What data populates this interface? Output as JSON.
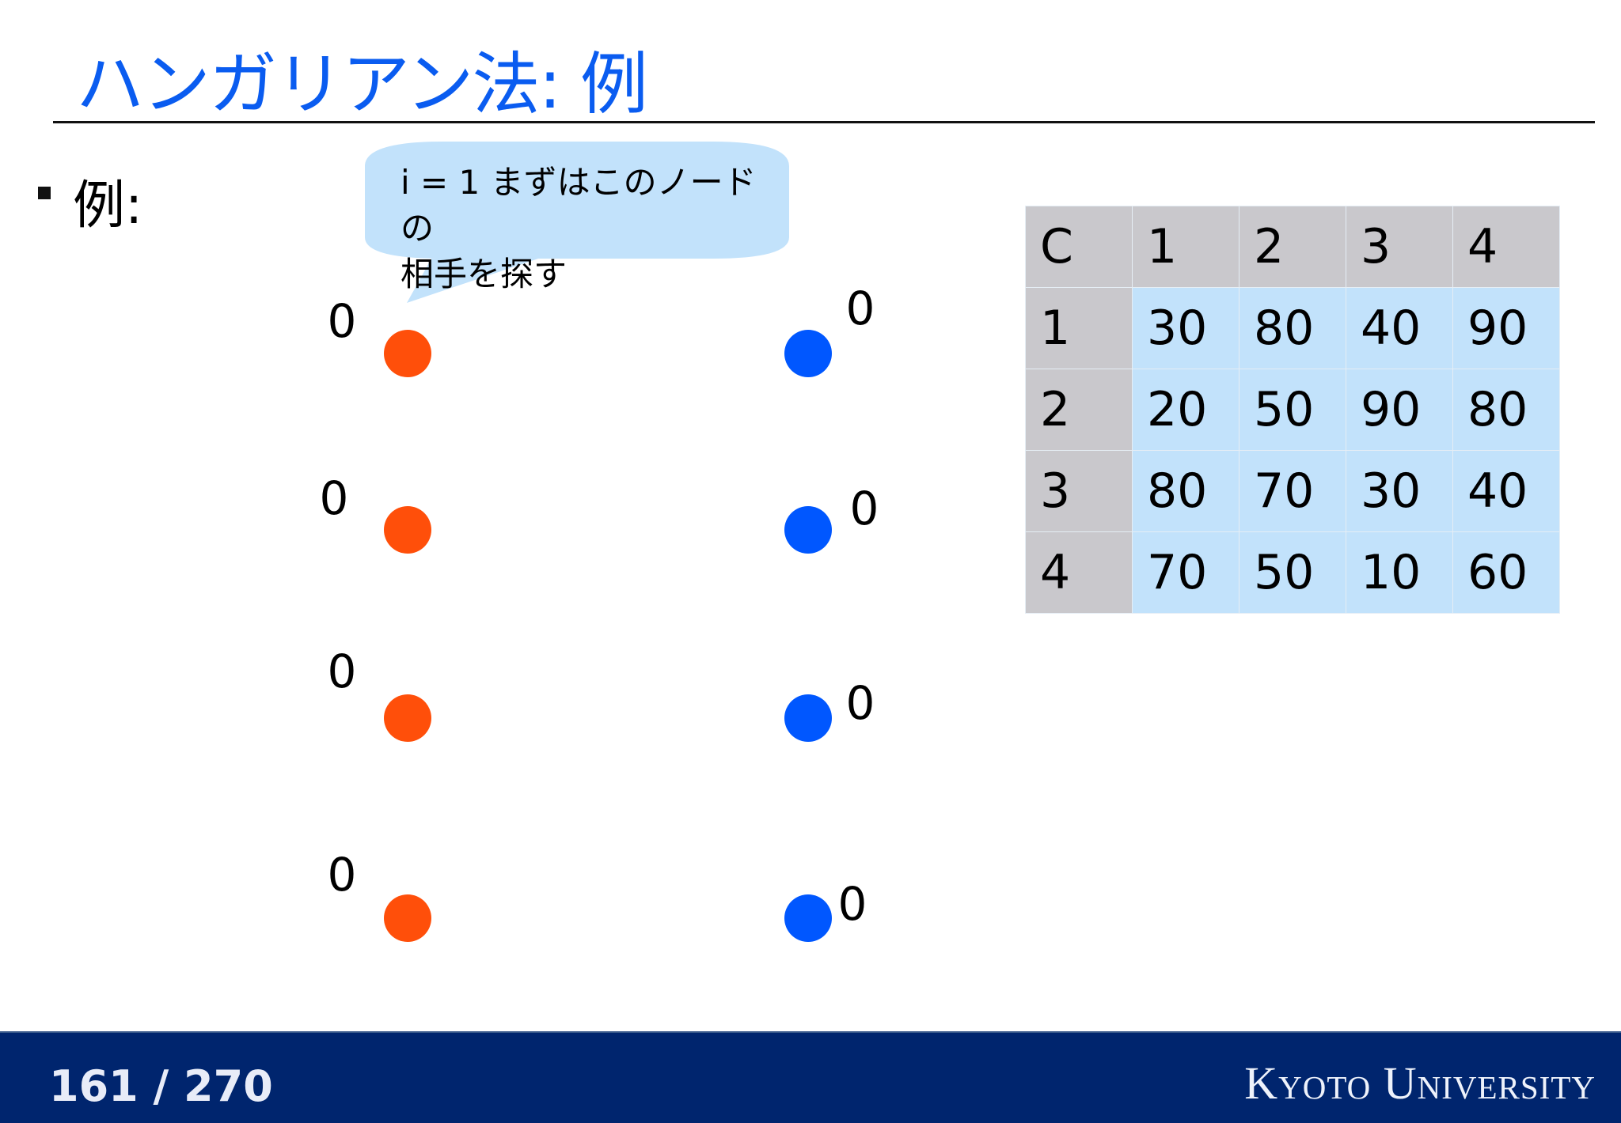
{
  "title": "ハンガリアン法: 例",
  "bullet": "例:",
  "callout": {
    "line1": "i = 1 まずはこのノードの",
    "line2": "相手を探す"
  },
  "table": {
    "corner": "C",
    "col_headers": [
      "1",
      "2",
      "3",
      "4"
    ],
    "rows": [
      {
        "label": "1",
        "values": [
          "30",
          "80",
          "40",
          "90"
        ]
      },
      {
        "label": "2",
        "values": [
          "20",
          "50",
          "90",
          "80"
        ]
      },
      {
        "label": "3",
        "values": [
          "80",
          "70",
          "30",
          "40"
        ]
      },
      {
        "label": "4",
        "values": [
          "70",
          "50",
          "10",
          "60"
        ]
      }
    ]
  },
  "left_nodes": {
    "color": "#ff4f0a",
    "labels": [
      "0",
      "0",
      "0",
      "0"
    ]
  },
  "right_nodes": {
    "color": "#0057ff",
    "labels": [
      "0",
      "0",
      "0",
      "0"
    ]
  },
  "footer": {
    "page": "161 / 270",
    "org": "Kyoto University",
    "background": "#00256e"
  }
}
